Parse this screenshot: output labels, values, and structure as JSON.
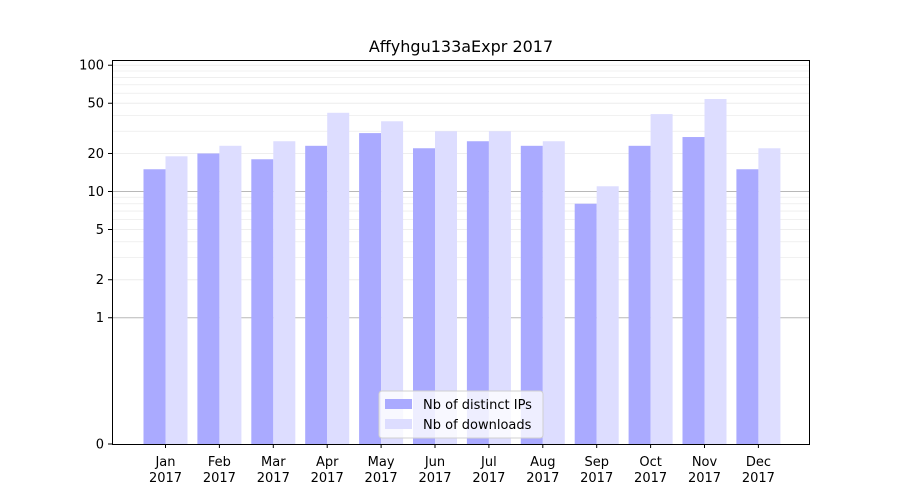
{
  "chart_data": {
    "type": "bar",
    "title": "Affyhgu133aExpr 2017",
    "xlabel": "",
    "ylabel": "",
    "yscale": "symlog",
    "ylim": [
      0,
      110
    ],
    "yticks": [
      0,
      1,
      2,
      5,
      10,
      20,
      50,
      100
    ],
    "grid": true,
    "legend_position": "bottom-center",
    "categories": [
      [
        "Jan",
        "2017"
      ],
      [
        "Feb",
        "2017"
      ],
      [
        "Mar",
        "2017"
      ],
      [
        "Apr",
        "2017"
      ],
      [
        "May",
        "2017"
      ],
      [
        "Jun",
        "2017"
      ],
      [
        "Jul",
        "2017"
      ],
      [
        "Aug",
        "2017"
      ],
      [
        "Sep",
        "2017"
      ],
      [
        "Oct",
        "2017"
      ],
      [
        "Nov",
        "2017"
      ],
      [
        "Dec",
        "2017"
      ]
    ],
    "series": [
      {
        "name": "Nb of distinct IPs",
        "color": "#aaaaff",
        "values": [
          15,
          20,
          18,
          23,
          29,
          22,
          25,
          23,
          8,
          23,
          27,
          15
        ]
      },
      {
        "name": "Nb of downloads",
        "color": "#ddddff",
        "values": [
          19,
          23,
          25,
          42,
          36,
          30,
          30,
          25,
          11,
          41,
          54,
          22
        ]
      }
    ]
  }
}
